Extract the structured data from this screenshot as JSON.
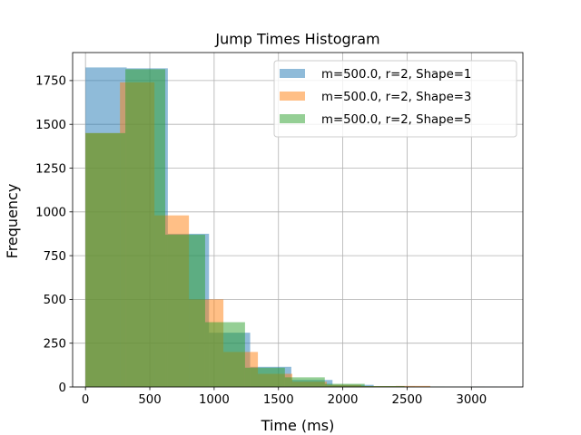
{
  "chart_data": {
    "type": "bar",
    "title": "Jump Times Histogram",
    "xlabel": "Time (ms)",
    "ylabel": "Frequency",
    "xlim": [
      -100,
      3400
    ],
    "ylim": [
      0,
      1910
    ],
    "xticks": [
      0,
      500,
      1000,
      1500,
      2000,
      2500,
      3000
    ],
    "yticks": [
      0,
      250,
      500,
      750,
      1000,
      1250,
      1500,
      1750
    ],
    "grid": true,
    "legend_position": "top-right",
    "series": [
      {
        "name": "m=500.0, r=2, Shape=1",
        "color": "#1f77b4",
        "bins": [
          {
            "x0": 0,
            "x1": 320,
            "y": 1825
          },
          {
            "x0": 320,
            "x1": 640,
            "y": 1820
          },
          {
            "x0": 640,
            "x1": 960,
            "y": 875
          },
          {
            "x0": 960,
            "x1": 1280,
            "y": 310
          },
          {
            "x0": 1280,
            "x1": 1600,
            "y": 115
          },
          {
            "x0": 1600,
            "x1": 1920,
            "y": 40
          },
          {
            "x0": 1920,
            "x1": 2240,
            "y": 12
          },
          {
            "x0": 2240,
            "x1": 2560,
            "y": 3
          },
          {
            "x0": 2560,
            "x1": 2880,
            "y": 1
          },
          {
            "x0": 2880,
            "x1": 3200,
            "y": 1
          }
        ]
      },
      {
        "name": "m=500.0, r=2, Shape=3",
        "color": "#ff7f0e",
        "bins": [
          {
            "x0": 0,
            "x1": 268,
            "y": 1450
          },
          {
            "x0": 268,
            "x1": 536,
            "y": 1740
          },
          {
            "x0": 536,
            "x1": 804,
            "y": 980
          },
          {
            "x0": 804,
            "x1": 1072,
            "y": 500
          },
          {
            "x0": 1072,
            "x1": 1340,
            "y": 200
          },
          {
            "x0": 1340,
            "x1": 1608,
            "y": 75
          },
          {
            "x0": 1608,
            "x1": 1876,
            "y": 30
          },
          {
            "x0": 1876,
            "x1": 2144,
            "y": 12
          },
          {
            "x0": 2144,
            "x1": 2412,
            "y": 5
          },
          {
            "x0": 2412,
            "x1": 2680,
            "y": 6
          }
        ]
      },
      {
        "name": "m=500.0, r=2, Shape=5",
        "color": "#2ca02c",
        "bins": [
          {
            "x0": 0,
            "x1": 310,
            "y": 1450
          },
          {
            "x0": 310,
            "x1": 620,
            "y": 1815
          },
          {
            "x0": 620,
            "x1": 930,
            "y": 870
          },
          {
            "x0": 930,
            "x1": 1240,
            "y": 370
          },
          {
            "x0": 1240,
            "x1": 1550,
            "y": 110
          },
          {
            "x0": 1550,
            "x1": 1860,
            "y": 55
          },
          {
            "x0": 1860,
            "x1": 2170,
            "y": 18
          },
          {
            "x0": 2170,
            "x1": 2480,
            "y": 5
          },
          {
            "x0": 2480,
            "x1": 2790,
            "y": 2
          },
          {
            "x0": 2790,
            "x1": 3100,
            "y": 1
          }
        ]
      }
    ]
  }
}
